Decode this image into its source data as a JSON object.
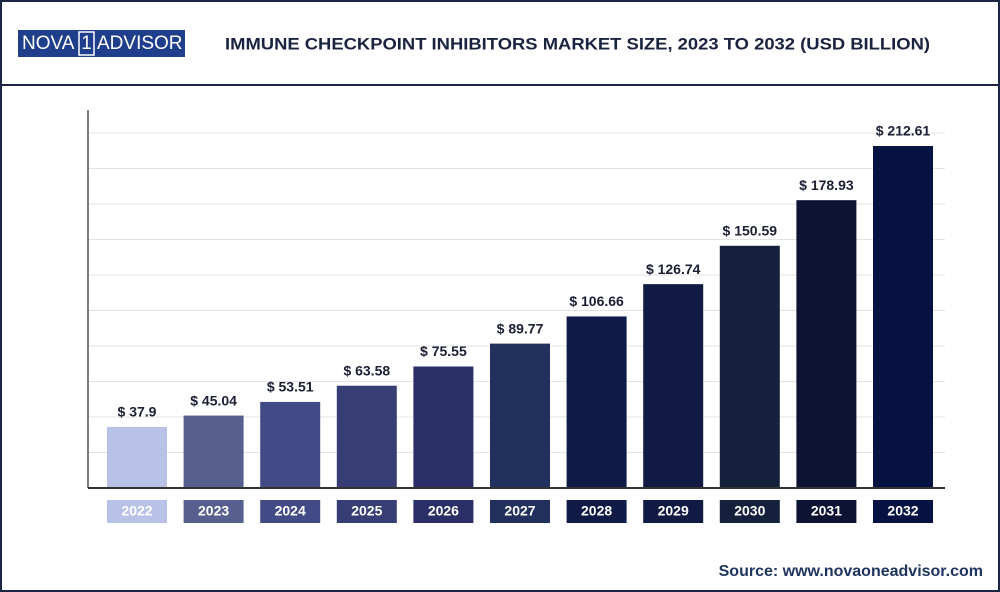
{
  "logo": {
    "left": "NOVA",
    "mark": "1",
    "right": "ADVISOR"
  },
  "chart_data": {
    "type": "bar",
    "title": "IMMUNE CHECKPOINT INHIBITORS MARKET SIZE, 2023 TO 2032 (USD BILLION)",
    "categories": [
      "2022",
      "2023",
      "2024",
      "2025",
      "2026",
      "2027",
      "2028",
      "2029",
      "2030",
      "2031",
      "2032"
    ],
    "values": [
      37.9,
      45.04,
      53.51,
      63.58,
      75.55,
      89.77,
      106.66,
      126.74,
      150.59,
      178.93,
      212.61
    ],
    "value_labels": [
      "$ 37.9",
      "$ 45.04",
      "$ 53.51",
      "$ 63.58",
      "$ 75.55",
      "$ 89.77",
      "$ 106.66",
      "$ 126.74",
      "$ 150.59",
      "$ 178.93",
      "$ 212.61"
    ],
    "colors": [
      "#b8c2e6",
      "#575f8e",
      "#434b86",
      "#363e75",
      "#2a2f67",
      "#22305e",
      "#0f1a47",
      "#111a42",
      "#15203d",
      "#0d1332",
      "#061241"
    ],
    "ylim": [
      0,
      235
    ],
    "grid": true,
    "source": "Source: www.novaoneadvisor.com"
  }
}
